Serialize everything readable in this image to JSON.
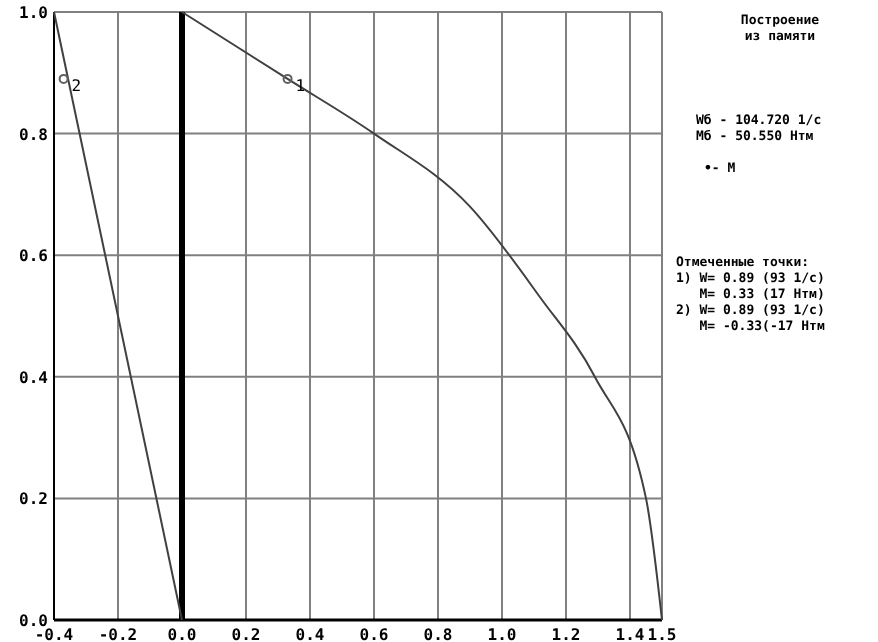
{
  "chart_data": {
    "type": "line",
    "title": "Построение\nиз памяти",
    "xlim": [
      -0.4,
      1.5
    ],
    "xticks": [
      {
        "value": -0.4,
        "label": "-0.4"
      },
      {
        "value": -0.2,
        "label": "-0.2"
      },
      {
        "value": 0,
        "label": "0.0"
      },
      {
        "value": 0.2,
        "label": "0.2"
      },
      {
        "value": 0.4,
        "label": "0.4"
      },
      {
        "value": 0.6,
        "label": "0.6"
      },
      {
        "value": 0.8,
        "label": "0.8"
      },
      {
        "value": 1,
        "label": "1.0"
      },
      {
        "value": 1.2,
        "label": "1.2"
      },
      {
        "value": 1.4,
        "label": "1.4"
      },
      {
        "value": 1.5,
        "label": "1.5"
      }
    ],
    "ylim": [
      0,
      1
    ],
    "yticks": [
      {
        "value": 0,
        "label": "0.0"
      },
      {
        "value": 0.2,
        "label": "0.2"
      },
      {
        "value": 0.4,
        "label": "0.4"
      },
      {
        "value": 0.6,
        "label": "0.6"
      },
      {
        "value": 0.8,
        "label": "0.8"
      },
      {
        "value": 1,
        "label": "1.0"
      }
    ],
    "grid": true,
    "series": [
      {
        "color": "#404040",
        "x": [
          0,
          0.33,
          0.6,
          0.9,
          1.12,
          1.29,
          1.45,
          1.5
        ],
        "values": [
          1,
          0.89,
          0.8,
          0.68,
          0.53,
          0.4,
          0.2,
          0
        ]
      },
      {
        "color": "#404040",
        "x": [
          -0.4,
          0
        ],
        "values": [
          1,
          0
        ]
      },
      {
        "type": "scatter",
        "color": "#606060",
        "marker": "circle",
        "x": [
          0.33,
          -0.37
        ],
        "values": [
          0.89,
          0.89
        ]
      }
    ],
    "ref_lines": [
      {
        "axis": "x",
        "value": 0,
        "color": "#000000"
      }
    ],
    "annotations": [
      {
        "text": "1",
        "x": 0.33,
        "y": 0.89
      },
      {
        "text": "2",
        "x": -0.37,
        "y": 0.89
      },
      "Wб - 104.720 1/с\nМб - 50.550 Нтм",
      "•- М",
      "Отмеченные точки:\n1) W= 0.89 (93 1/с)\n   M= 0.33 (17 Нтм)\n2) W= 0.89 (93 1/с)\n   M= -0.33(-17 Нтм"
    ]
  }
}
